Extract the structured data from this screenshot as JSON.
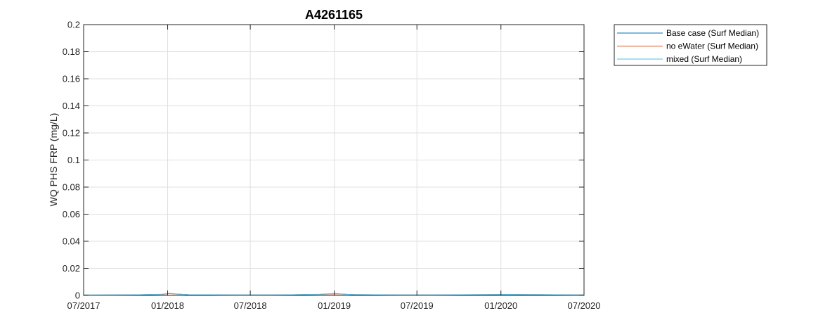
{
  "chart_data": {
    "type": "line",
    "title": "A4261165",
    "xlabel": "",
    "ylabel": "WQ PHS FRP  (mg/L)",
    "xlim": [
      "2017-07-01",
      "2020-07-01"
    ],
    "ylim": [
      0,
      0.2
    ],
    "grid": true,
    "legend_position": "outside-top-right",
    "x_ticks": [
      {
        "date": "2017-07-01",
        "label": "07/2017"
      },
      {
        "date": "2018-01-01",
        "label": "01/2018"
      },
      {
        "date": "2018-07-01",
        "label": "07/2018"
      },
      {
        "date": "2019-01-01",
        "label": "01/2019"
      },
      {
        "date": "2019-07-01",
        "label": "07/2019"
      },
      {
        "date": "2020-01-01",
        "label": "01/2020"
      },
      {
        "date": "2020-07-01",
        "label": "07/2020"
      }
    ],
    "y_ticks": [
      {
        "value": 0,
        "label": "0"
      },
      {
        "value": 0.02,
        "label": "0.02"
      },
      {
        "value": 0.04,
        "label": "0.04"
      },
      {
        "value": 0.06,
        "label": "0.06"
      },
      {
        "value": 0.08,
        "label": "0.08"
      },
      {
        "value": 0.1,
        "label": "0.1"
      },
      {
        "value": 0.12,
        "label": "0.12"
      },
      {
        "value": 0.14,
        "label": "0.14"
      },
      {
        "value": 0.16,
        "label": "0.16"
      },
      {
        "value": 0.18,
        "label": "0.18"
      },
      {
        "value": 0.2,
        "label": "0.2"
      }
    ],
    "series": [
      {
        "name": "Base case (Surf Median)",
        "color": "#0072BD",
        "x": [
          "2017-07-01",
          "2017-09-01",
          "2017-11-01",
          "2017-12-20",
          "2018-01-05",
          "2018-01-20",
          "2018-02-15",
          "2018-04-01",
          "2018-06-01",
          "2018-08-01",
          "2018-10-01",
          "2018-12-01",
          "2019-01-05",
          "2019-01-20",
          "2019-02-15",
          "2019-04-01",
          "2019-06-01",
          "2019-08-01",
          "2019-10-01",
          "2019-12-01",
          "2020-01-15",
          "2020-03-01",
          "2020-05-01",
          "2020-07-01"
        ],
        "y": [
          0.0003,
          0.0004,
          0.0005,
          0.0008,
          0.0014,
          0.001,
          0.0006,
          0.0005,
          0.0004,
          0.0004,
          0.0005,
          0.0008,
          0.0013,
          0.0009,
          0.0006,
          0.0005,
          0.0004,
          0.0004,
          0.0005,
          0.0006,
          0.0007,
          0.0006,
          0.0005,
          0.0004
        ]
      },
      {
        "name": "no eWater (Surf Median)",
        "color": "#D95319",
        "x": [
          "2017-07-01",
          "2017-09-01",
          "2017-11-01",
          "2017-12-20",
          "2018-01-05",
          "2018-01-20",
          "2018-02-15",
          "2018-04-01",
          "2018-06-01",
          "2018-08-01",
          "2018-10-01",
          "2018-12-01",
          "2019-01-05",
          "2019-01-20",
          "2019-02-15",
          "2019-04-01",
          "2019-06-01",
          "2019-08-01",
          "2019-10-01",
          "2019-12-01",
          "2020-01-15",
          "2020-03-01",
          "2020-05-01",
          "2020-07-01"
        ],
        "y": [
          0.0003,
          0.0004,
          0.0005,
          0.0008,
          0.0013,
          0.001,
          0.0006,
          0.0005,
          0.0004,
          0.0004,
          0.0005,
          0.0008,
          0.0012,
          0.0009,
          0.0006,
          0.0005,
          0.0004,
          0.0004,
          0.0005,
          0.0006,
          0.0007,
          0.0006,
          0.0005,
          0.0004
        ]
      },
      {
        "name": "mixed (Surf Median)",
        "color": "#4DBEEE",
        "x": [
          "2017-07-01",
          "2017-09-01",
          "2017-11-01",
          "2017-12-20",
          "2018-01-05",
          "2018-01-20",
          "2018-02-15",
          "2018-04-01",
          "2018-06-01",
          "2018-08-01",
          "2018-10-01",
          "2018-12-01",
          "2019-01-05",
          "2019-01-20",
          "2019-02-15",
          "2019-04-01",
          "2019-06-01",
          "2019-08-01",
          "2019-10-01",
          "2019-12-01",
          "2020-01-15",
          "2020-03-01",
          "2020-05-01",
          "2020-07-01"
        ],
        "y": [
          0.0003,
          0.0004,
          0.0005,
          0.0009,
          0.0015,
          0.0011,
          0.0006,
          0.0005,
          0.0004,
          0.0004,
          0.0005,
          0.0009,
          0.0014,
          0.001,
          0.0006,
          0.0005,
          0.0004,
          0.0004,
          0.0005,
          0.0006,
          0.0008,
          0.0006,
          0.0005,
          0.0004
        ]
      }
    ]
  }
}
